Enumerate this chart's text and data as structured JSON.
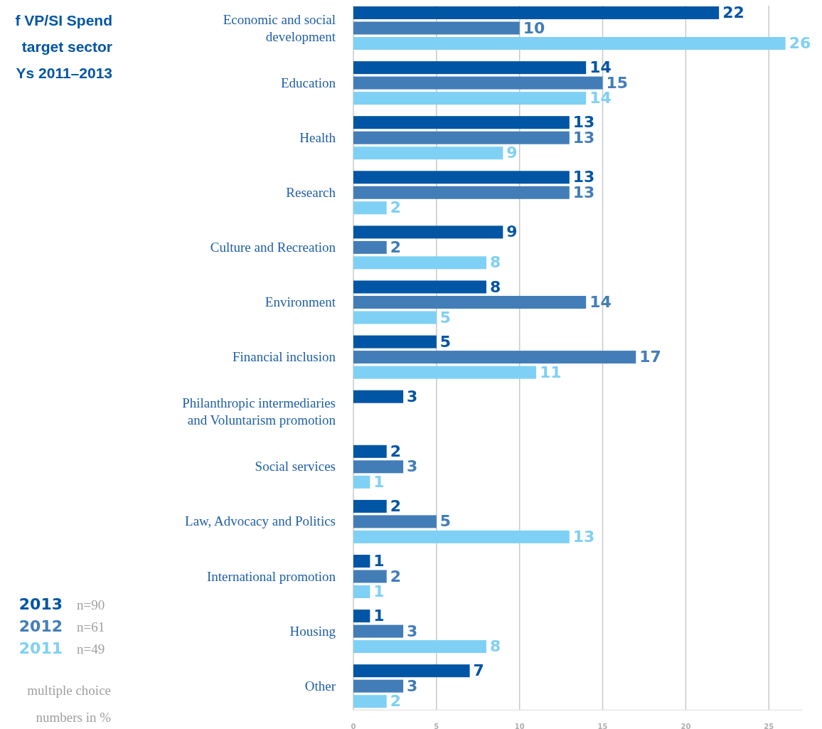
{
  "chart_data": {
    "type": "bar",
    "orientation": "horizontal",
    "title": "f VP/SI Spend\ntarget sector\nYs 2011–2013",
    "categories": [
      "Economic and social development",
      "Education",
      "Health",
      "Research",
      "Culture and Recreation",
      "Environment",
      "Financial inclusion",
      "Philanthropic intermediaries and Voluntarism promotion",
      "Social services",
      "Law, Advocacy and Politics",
      "International promotion",
      "Housing",
      "Other"
    ],
    "series": [
      {
        "name": "2013",
        "color": "#0055a4",
        "values": [
          22,
          14,
          13,
          13,
          9,
          8,
          5,
          3,
          2,
          2,
          1,
          1,
          7
        ]
      },
      {
        "name": "2012",
        "color": "#427db8",
        "values": [
          10,
          15,
          13,
          13,
          2,
          14,
          17,
          null,
          3,
          5,
          2,
          3,
          3
        ]
      },
      {
        "name": "2011",
        "color": "#7fd0f5",
        "values": [
          26,
          14,
          9,
          2,
          8,
          5,
          11,
          null,
          1,
          13,
          1,
          8,
          2
        ]
      }
    ],
    "xlim": [
      0,
      27
    ],
    "xticks": [
      0,
      5,
      10,
      15,
      20,
      25
    ],
    "grid": "x",
    "data_labels": true,
    "legend": "bottom left",
    "annotations": [
      "n=90",
      "n=61",
      "n=49",
      "multiple choice",
      "numbers in %"
    ]
  }
}
